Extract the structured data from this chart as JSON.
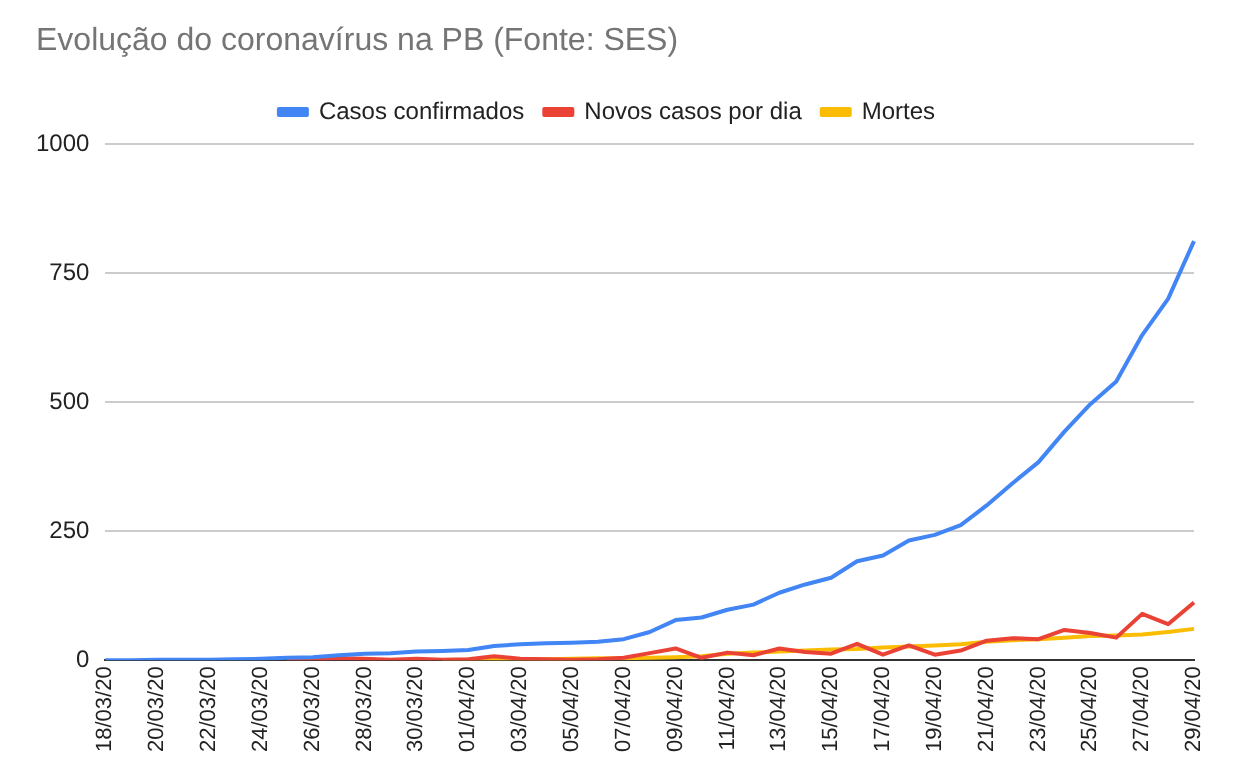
{
  "chart_data": {
    "type": "line",
    "title": "Evolução do coronavírus na PB (Fonte: SES)",
    "categories": [
      "18/03/20",
      null,
      "20/03/20",
      null,
      "22/03/20",
      null,
      "24/03/20",
      null,
      "26/03/20",
      null,
      "28/03/20",
      null,
      "30/03/20",
      null,
      "01/04/20",
      null,
      "03/04/20",
      null,
      "05/04/20",
      null,
      "07/04/20",
      null,
      "09/04/20",
      null,
      "11/04/20",
      null,
      "13/04/20",
      null,
      "15/04/20",
      null,
      "17/04/20",
      null,
      "19/04/20",
      null,
      "21/04/20",
      null,
      "23/04/20",
      null,
      "25/04/20",
      null,
      "27/04/20",
      null,
      "29/04/20"
    ],
    "series": [
      {
        "name": "Casos confirmados",
        "color": "#4285f4",
        "values": [
          0,
          0,
          1,
          1,
          1,
          2,
          3,
          5,
          6,
          10,
          13,
          14,
          17,
          18,
          20,
          28,
          31,
          33,
          34,
          36,
          41,
          55,
          78,
          83,
          98,
          108,
          131,
          147,
          160,
          192,
          203,
          232,
          243,
          262,
          300,
          343,
          384,
          443,
          496,
          540,
          630,
          700,
          812
        ]
      },
      {
        "name": "Novos casos por dia",
        "color": "#ea4335",
        "values": [
          null,
          null,
          null,
          null,
          null,
          null,
          null,
          2,
          1,
          4,
          3,
          1,
          3,
          1,
          2,
          8,
          3,
          2,
          1,
          2,
          5,
          14,
          23,
          5,
          15,
          10,
          23,
          16,
          13,
          32,
          11,
          29,
          11,
          19,
          38,
          43,
          41,
          59,
          53,
          44,
          90,
          70,
          112
        ]
      },
      {
        "name": "Mortes",
        "color": "#fbbc04",
        "values": [
          null,
          null,
          null,
          null,
          null,
          null,
          null,
          null,
          null,
          null,
          null,
          null,
          null,
          0,
          1,
          1,
          2,
          2,
          3,
          4,
          4,
          5,
          6,
          8,
          13,
          15,
          17,
          19,
          21,
          22,
          25,
          27,
          29,
          31,
          36,
          39,
          41,
          44,
          47,
          48,
          50,
          55,
          61
        ]
      }
    ],
    "ylim": [
      0,
      1000
    ],
    "yticks": [
      0,
      250,
      500,
      750,
      1000
    ],
    "grid": "y",
    "legend": "top",
    "marker": "none",
    "line_style": "solid"
  }
}
